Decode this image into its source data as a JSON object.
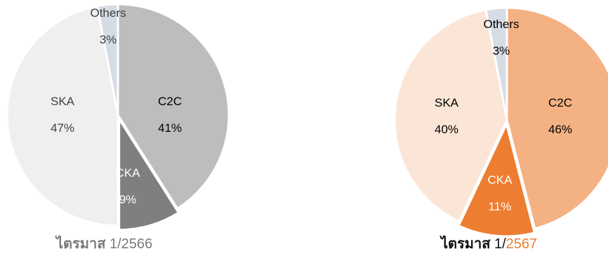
{
  "chart_data": [
    {
      "type": "pie",
      "title": "",
      "caption": {
        "prefix": "ไตรมาส",
        "quarter": "1/",
        "year": "2566"
      },
      "start": "12 o'clock, clockwise",
      "slices": [
        {
          "label": "C2C",
          "value": 41,
          "value_text": "41%",
          "color": "#bdbdbd",
          "text_color": "#000000"
        },
        {
          "label": "CKA",
          "value": 9,
          "value_text": "9%",
          "color": "#7f7f7f",
          "text_color": "#ffffff"
        },
        {
          "label": "SKA",
          "value": 47,
          "value_text": "47%",
          "color": "#efefef",
          "text_color": "#404040"
        },
        {
          "label": "Others",
          "value": 3,
          "value_text": "3%",
          "color": "#d6dce4",
          "text_color": "#404040"
        }
      ]
    },
    {
      "type": "pie",
      "title": "",
      "caption": {
        "prefix": "ไตรมาส",
        "quarter": "1/",
        "year": "2567"
      },
      "start": "12 o'clock, clockwise",
      "slices": [
        {
          "label": "C2C",
          "value": 46,
          "value_text": "46%",
          "color": "#f4b183",
          "text_color": "#000000"
        },
        {
          "label": "CKA",
          "value": 11,
          "value_text": "11%",
          "color": "#ed7d31",
          "text_color": "#ffffff"
        },
        {
          "label": "SKA",
          "value": 40,
          "value_text": "40%",
          "color": "#fbe5d6",
          "text_color": "#000000"
        },
        {
          "label": "Others",
          "value": 3,
          "value_text": "3%",
          "color": "#d6dce4",
          "text_color": "#000000"
        }
      ]
    }
  ]
}
